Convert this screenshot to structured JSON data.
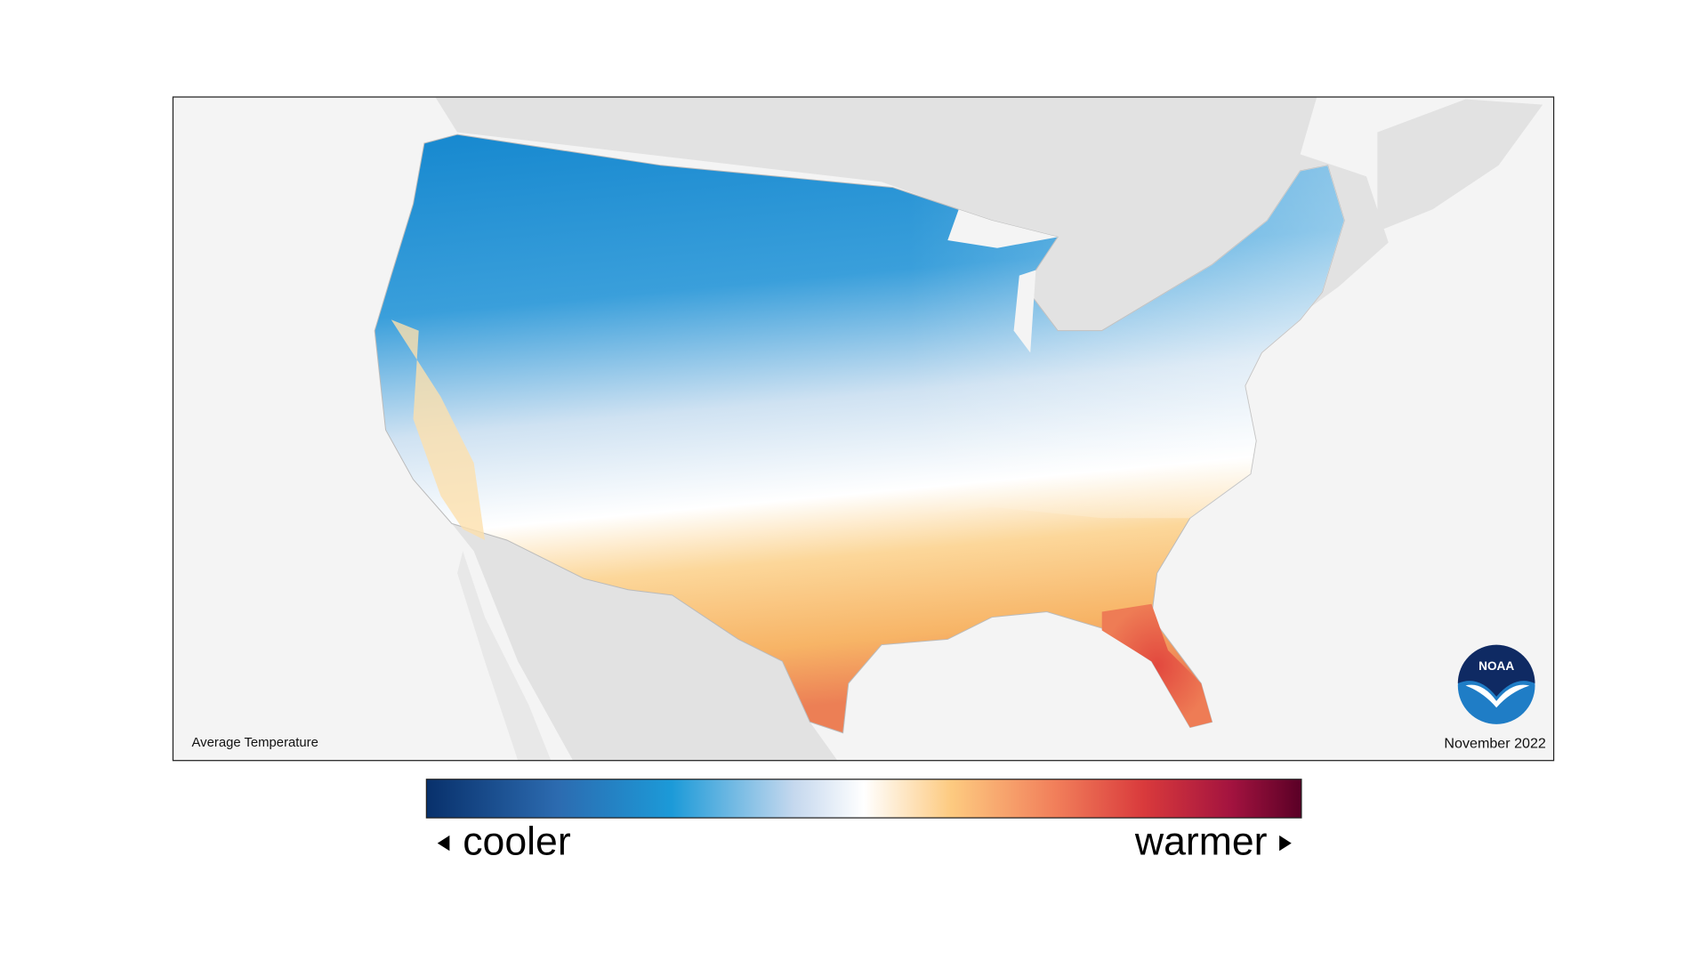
{
  "map": {
    "title": "Average Temperature",
    "date": "November 2022"
  },
  "legend": {
    "low_label": "cooler",
    "high_label": "warmer"
  },
  "logo": {
    "text": "NOAA"
  }
}
